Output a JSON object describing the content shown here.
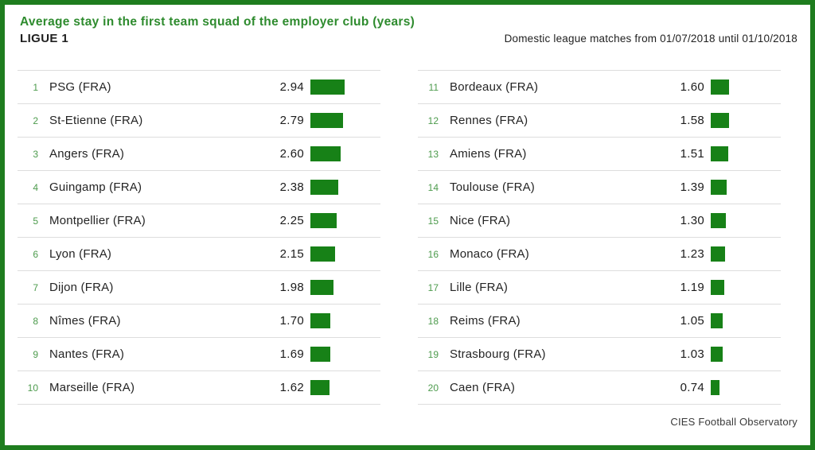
{
  "header": {
    "title": "Average stay in the first team squad of the employer club (years)",
    "league": "LIGUE 1",
    "period_note": "Domestic league matches from 01/07/2018 until 01/10/2018"
  },
  "footer": {
    "source": "CIES Football Observatory"
  },
  "colors": {
    "border_green": "#1e7d1e",
    "title_green": "#2e8b2e",
    "bar_green": "#178117",
    "rank_green": "#4d9b4d",
    "text_dark": "#222222",
    "divider": "#dddddd"
  },
  "chart_data": {
    "type": "bar",
    "title": "Average stay in the first team squad of the employer club (years)",
    "subtitle": "LIGUE 1",
    "note": "Domestic league matches from 01/07/2018 until 01/10/2018",
    "source": "CIES Football Observatory",
    "unit": "years",
    "orientation": "horizontal",
    "xlim": [
      0,
      3
    ],
    "layout": "two-column ranked list, ranks 1-10 left, 11-20 right",
    "entries": [
      {
        "rank": 1,
        "team": "PSG (FRA)",
        "value": "2.94"
      },
      {
        "rank": 2,
        "team": "St-Etienne (FRA)",
        "value": "2.79"
      },
      {
        "rank": 3,
        "team": "Angers (FRA)",
        "value": "2.60"
      },
      {
        "rank": 4,
        "team": "Guingamp (FRA)",
        "value": "2.38"
      },
      {
        "rank": 5,
        "team": "Montpellier (FRA)",
        "value": "2.25"
      },
      {
        "rank": 6,
        "team": "Lyon (FRA)",
        "value": "2.15"
      },
      {
        "rank": 7,
        "team": "Dijon (FRA)",
        "value": "1.98"
      },
      {
        "rank": 8,
        "team": "Nîmes (FRA)",
        "value": "1.70"
      },
      {
        "rank": 9,
        "team": "Nantes (FRA)",
        "value": "1.69"
      },
      {
        "rank": 10,
        "team": "Marseille (FRA)",
        "value": "1.62"
      },
      {
        "rank": 11,
        "team": "Bordeaux (FRA)",
        "value": "1.60"
      },
      {
        "rank": 12,
        "team": "Rennes (FRA)",
        "value": "1.58"
      },
      {
        "rank": 13,
        "team": "Amiens (FRA)",
        "value": "1.51"
      },
      {
        "rank": 14,
        "team": "Toulouse (FRA)",
        "value": "1.39"
      },
      {
        "rank": 15,
        "team": "Nice (FRA)",
        "value": "1.30"
      },
      {
        "rank": 16,
        "team": "Monaco (FRA)",
        "value": "1.23"
      },
      {
        "rank": 17,
        "team": "Lille (FRA)",
        "value": "1.19"
      },
      {
        "rank": 18,
        "team": "Reims (FRA)",
        "value": "1.05"
      },
      {
        "rank": 19,
        "team": "Strasbourg (FRA)",
        "value": "1.03"
      },
      {
        "rank": 20,
        "team": "Caen (FRA)",
        "value": "0.74"
      }
    ]
  }
}
